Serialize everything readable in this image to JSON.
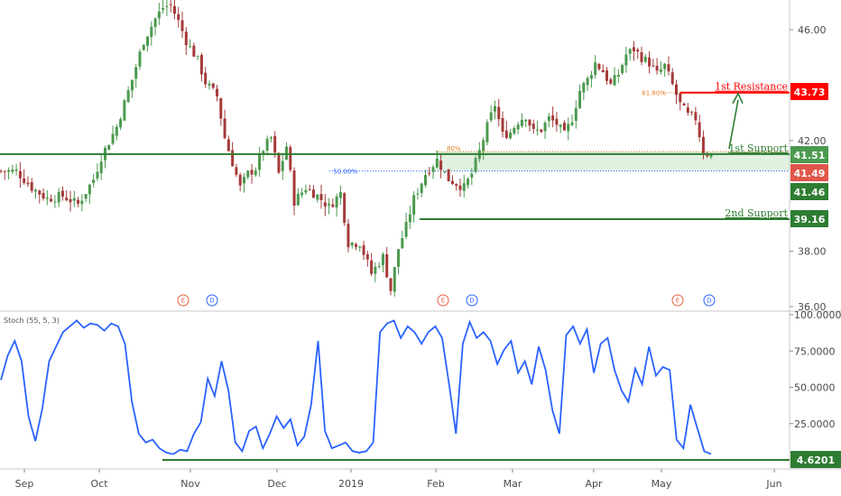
{
  "chart_data": [
    {
      "type": "candlestick",
      "title": "",
      "ylim": [
        36,
        47
      ],
      "y_ticks": [
        "36.00",
        "38.00",
        "42.00",
        "46.00"
      ],
      "x_ticks": [
        "Sep",
        "Oct",
        "Nov",
        "Dec",
        "2019",
        "Feb",
        "Mar",
        "Apr",
        "May",
        "Jun"
      ],
      "price_path": [
        [
          0,
          40.9
        ],
        [
          4,
          40.9
        ],
        [
          8,
          40.3
        ],
        [
          12,
          39.9
        ],
        [
          16,
          40.0
        ],
        [
          20,
          39.7
        ],
        [
          24,
          40.6
        ],
        [
          26,
          41.4
        ],
        [
          30,
          42.5
        ],
        [
          34,
          44.2
        ],
        [
          37,
          45.6
        ],
        [
          40,
          46.4
        ],
        [
          42,
          46.8
        ],
        [
          44,
          46.9
        ],
        [
          46,
          46.3
        ],
        [
          48,
          45.6
        ],
        [
          51,
          44.9
        ],
        [
          53,
          44.1
        ],
        [
          56,
          43.6
        ],
        [
          58,
          42.1
        ],
        [
          60,
          41.2
        ],
        [
          62,
          40.3
        ],
        [
          64,
          40.8
        ],
        [
          66,
          41.0
        ],
        [
          68,
          41.7
        ],
        [
          70,
          42.1
        ],
        [
          72,
          40.8
        ],
        [
          74,
          41.8
        ],
        [
          76,
          39.8
        ],
        [
          79,
          40.3
        ],
        [
          82,
          40.0
        ],
        [
          85,
          39.6
        ],
        [
          88,
          40.1
        ],
        [
          90,
          38.3
        ],
        [
          93,
          38.3
        ],
        [
          96,
          37.2
        ],
        [
          99,
          37.8
        ],
        [
          101,
          36.6
        ],
        [
          103,
          38.1
        ],
        [
          105,
          38.9
        ],
        [
          107,
          39.9
        ],
        [
          110,
          40.8
        ],
        [
          113,
          41.3
        ],
        [
          116,
          40.6
        ],
        [
          120,
          40.3
        ],
        [
          122,
          40.8
        ],
        [
          124,
          41.6
        ],
        [
          126,
          42.5
        ],
        [
          128,
          43.3
        ],
        [
          130,
          42.2
        ],
        [
          132,
          42.3
        ],
        [
          134,
          42.7
        ],
        [
          136,
          42.9
        ],
        [
          138,
          42.3
        ],
        [
          140,
          42.4
        ],
        [
          142,
          42.8
        ],
        [
          144,
          42.6
        ],
        [
          146,
          42.2
        ],
        [
          148,
          42.8
        ],
        [
          150,
          43.8
        ],
        [
          152,
          44.2
        ],
        [
          154,
          44.8
        ],
        [
          156,
          44.5
        ],
        [
          158,
          44.0
        ],
        [
          160,
          44.4
        ],
        [
          162,
          45.1
        ],
        [
          164,
          45.3
        ],
        [
          166,
          45.0
        ],
        [
          168,
          44.8
        ],
        [
          170,
          44.4
        ],
        [
          172,
          44.7
        ],
        [
          174,
          44.0
        ],
        [
          176,
          43.3
        ],
        [
          178,
          42.9
        ],
        [
          180,
          42.8
        ],
        [
          182,
          41.6
        ],
        [
          184,
          41.5
        ]
      ],
      "annotations": [
        {
          "label": "1st Resistance",
          "value": 43.73,
          "color": "#ff0000"
        },
        {
          "label": "1st Support",
          "value": 41.51,
          "color": "#2e7d32"
        },
        {
          "label": "2nd Support",
          "value": 39.16,
          "color": "#2e7d32"
        }
      ],
      "price_tags": [
        {
          "value": "43.73",
          "price": 43.73,
          "color": "#ff0000"
        },
        {
          "value": "41.51",
          "price": 41.51,
          "color": "#4c9a4f"
        },
        {
          "value": "41.49",
          "price": 41.49,
          "color": "#e0564a"
        },
        {
          "value": "41.46",
          "price": 41.46,
          "color": "#2e7d32"
        },
        {
          "value": "39.16",
          "price": 39.16,
          "color": "#2e7d32"
        }
      ],
      "fib_labels": [
        {
          "text": "61.80%",
          "price": 43.73,
          "color": "#e08020"
        },
        {
          "text": "50.00%",
          "price": 40.9,
          "color": "#2962ff"
        },
        {
          "text": "80%",
          "price": 41.6,
          "color": "#e08020"
        }
      ],
      "events": [
        {
          "label": "E",
          "color": "#e8603c"
        },
        {
          "label": "D",
          "color": "#2962ff"
        },
        {
          "label": "E",
          "color": "#e8603c"
        },
        {
          "label": "D",
          "color": "#2962ff"
        },
        {
          "label": "E",
          "color": "#e8603c"
        },
        {
          "label": "D",
          "color": "#2962ff"
        }
      ]
    },
    {
      "type": "line",
      "title": "Stoch (55, 5, 3)",
      "ylim": [
        0,
        100
      ],
      "y_ticks": [
        "100.0000",
        "75.0000",
        "50.0000",
        "25.0000"
      ],
      "current_value": "4.6201",
      "series": [
        {
          "values": [
            55,
            72,
            82,
            68,
            30,
            13,
            35,
            68,
            78,
            88,
            92,
            96,
            91,
            94,
            93,
            89,
            94,
            92,
            80,
            40,
            18,
            12,
            14,
            8,
            5,
            4,
            7,
            6,
            18,
            26,
            56,
            44,
            68,
            48,
            12,
            6,
            20,
            23,
            8,
            18,
            30,
            22,
            28,
            10,
            16,
            38,
            82,
            20,
            8,
            10,
            12,
            6,
            5,
            6,
            12,
            88,
            94,
            96,
            84,
            92,
            88,
            80,
            88,
            92,
            84,
            52,
            18,
            80,
            95,
            84,
            88,
            82,
            66,
            76,
            82,
            60,
            68,
            52,
            78,
            62,
            34,
            18,
            86,
            92,
            80,
            90,
            60,
            80,
            84,
            62,
            48,
            40,
            63,
            52,
            78,
            58,
            64,
            62,
            14,
            8,
            38,
            22,
            6,
            4
          ],
          "color": "#2962ff"
        }
      ],
      "reference_line": {
        "value": 4.6201,
        "color": "#2e7d32"
      }
    }
  ]
}
